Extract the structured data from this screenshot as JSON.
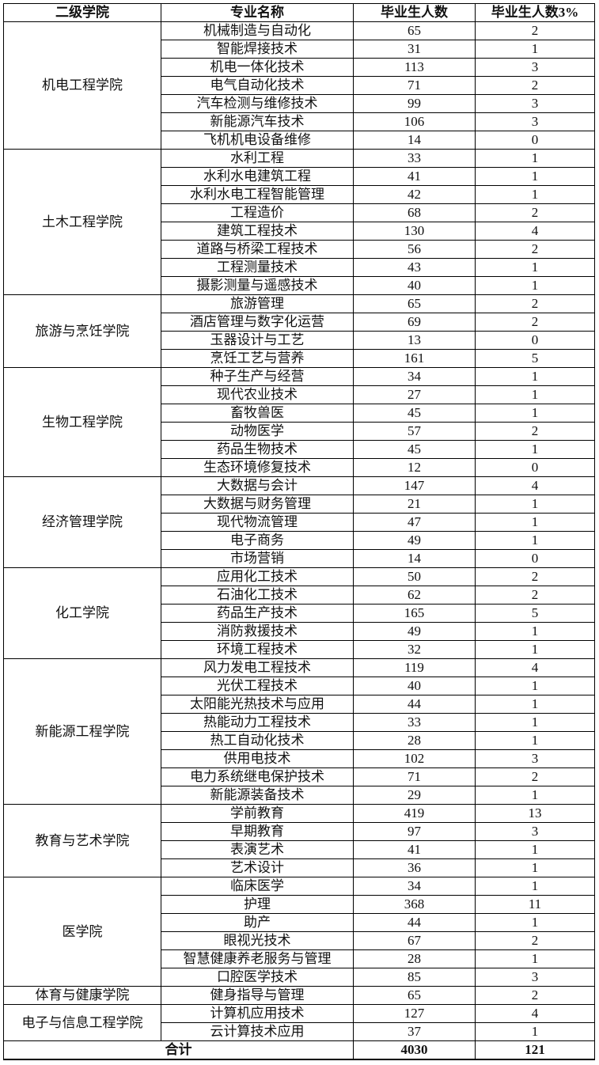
{
  "headers": [
    "二级学院",
    "专业名称",
    "毕业生人数",
    "毕业生人数3%"
  ],
  "colleges": [
    {
      "name": "机电工程学院",
      "majors": [
        [
          "机械制造与自动化",
          65,
          2
        ],
        [
          "智能焊接技术",
          31,
          1
        ],
        [
          "机电一体化技术",
          113,
          3
        ],
        [
          "电气自动化技术",
          71,
          2
        ],
        [
          "汽车检测与维修技术",
          99,
          3
        ],
        [
          "新能源汽车技术",
          106,
          3
        ],
        [
          "飞机机电设备维修",
          14,
          0
        ]
      ]
    },
    {
      "name": "土木工程学院",
      "majors": [
        [
          "水利工程",
          33,
          1
        ],
        [
          "水利水电建筑工程",
          41,
          1
        ],
        [
          "水利水电工程智能管理",
          42,
          1
        ],
        [
          "工程造价",
          68,
          2
        ],
        [
          "建筑工程技术",
          130,
          4
        ],
        [
          "道路与桥梁工程技术",
          56,
          2
        ],
        [
          "工程测量技术",
          43,
          1
        ],
        [
          "摄影测量与遥感技术",
          40,
          1
        ]
      ]
    },
    {
      "name": "旅游与烹饪学院",
      "majors": [
        [
          "旅游管理",
          65,
          2
        ],
        [
          "酒店管理与数字化运营",
          69,
          2
        ],
        [
          "玉器设计与工艺",
          13,
          0
        ],
        [
          "烹饪工艺与营养",
          161,
          5
        ]
      ]
    },
    {
      "name": "生物工程学院",
      "majors": [
        [
          "种子生产与经营",
          34,
          1
        ],
        [
          "现代农业技术",
          27,
          1
        ],
        [
          "畜牧兽医",
          45,
          1
        ],
        [
          "动物医学",
          57,
          2
        ],
        [
          "药品生物技术",
          45,
          1
        ],
        [
          "生态环境修复技术",
          12,
          0
        ]
      ]
    },
    {
      "name": "经济管理学院",
      "majors": [
        [
          "大数据与会计",
          147,
          4
        ],
        [
          "大数据与财务管理",
          21,
          1
        ],
        [
          "现代物流管理",
          47,
          1
        ],
        [
          "电子商务",
          49,
          1
        ],
        [
          "市场营销",
          14,
          0
        ]
      ]
    },
    {
      "name": "化工学院",
      "majors": [
        [
          "应用化工技术",
          50,
          2
        ],
        [
          "石油化工技术",
          62,
          2
        ],
        [
          "药品生产技术",
          165,
          5
        ],
        [
          "消防救援技术",
          49,
          1
        ],
        [
          "环境工程技术",
          32,
          1
        ]
      ]
    },
    {
      "name": "新能源工程学院",
      "majors": [
        [
          "风力发电工程技术",
          119,
          4
        ],
        [
          "光伏工程技术",
          40,
          1
        ],
        [
          "太阳能光热技术与应用",
          44,
          1
        ],
        [
          "热能动力工程技术",
          33,
          1
        ],
        [
          "热工自动化技术",
          28,
          1
        ],
        [
          "供用电技术",
          102,
          3
        ],
        [
          "电力系统继电保护技术",
          71,
          2
        ],
        [
          "新能源装备技术",
          29,
          1
        ]
      ]
    },
    {
      "name": "教育与艺术学院",
      "majors": [
        [
          "学前教育",
          419,
          13
        ],
        [
          "早期教育",
          97,
          3
        ],
        [
          "表演艺术",
          41,
          1
        ],
        [
          "艺术设计",
          36,
          1
        ]
      ]
    },
    {
      "name": "医学院",
      "majors": [
        [
          "临床医学",
          34,
          1
        ],
        [
          "护理",
          368,
          11
        ],
        [
          "助产",
          44,
          1
        ],
        [
          "眼视光技术",
          67,
          2
        ],
        [
          "智慧健康养老服务与管理",
          28,
          1
        ],
        [
          "口腔医学技术",
          85,
          3
        ]
      ]
    },
    {
      "name": "体育与健康学院",
      "majors": [
        [
          "健身指导与管理",
          65,
          2
        ]
      ]
    },
    {
      "name": "电子与信息工程学院",
      "majors": [
        [
          "计算机应用技术",
          127,
          4
        ],
        [
          "云计算技术应用",
          37,
          1
        ]
      ]
    }
  ],
  "total": {
    "label": "合计",
    "graduates": "4030",
    "three_percent": "121"
  }
}
